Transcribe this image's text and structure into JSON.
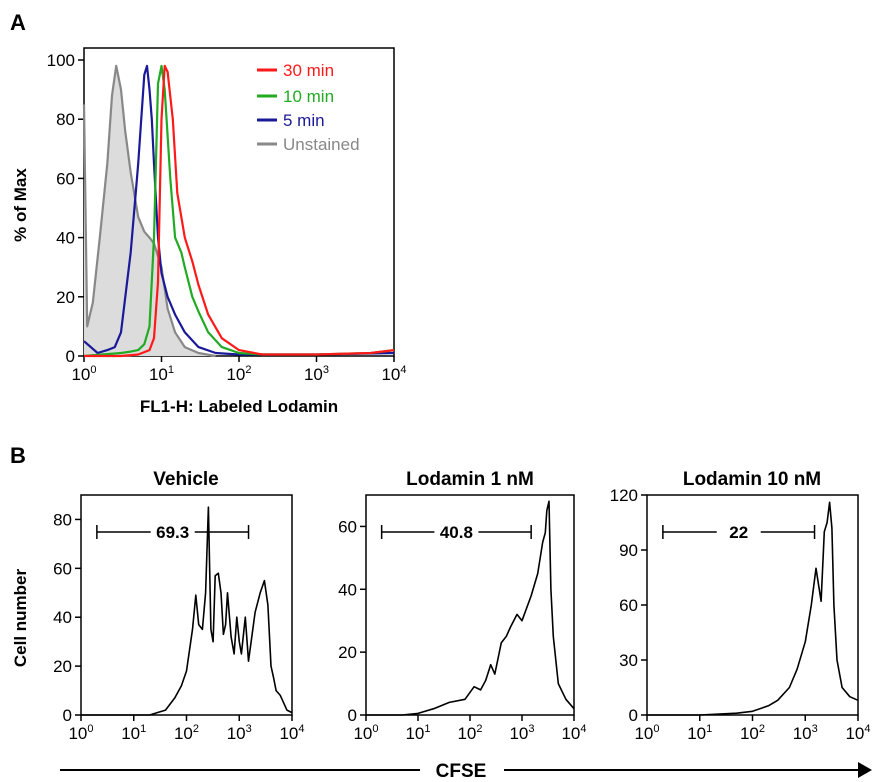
{
  "panel_a": {
    "label": "A",
    "ylabel": "% of Max",
    "xlabel": "FL1-H: Labeled Lodamin",
    "yticks": [
      "0",
      "20",
      "40",
      "60",
      "80",
      "100"
    ],
    "xticks": [
      {
        "base": "10",
        "exp": "0"
      },
      {
        "base": "10",
        "exp": "1"
      },
      {
        "base": "10",
        "exp": "2"
      },
      {
        "base": "10",
        "exp": "3"
      },
      {
        "base": "10",
        "exp": "4"
      }
    ],
    "legend": [
      "30 min",
      "10 min",
      "5 min",
      "Unstained"
    ]
  },
  "panel_b": {
    "label": "B",
    "ylabel": "Cell number",
    "axis_label": "CFSE",
    "xticks": [
      {
        "base": "10",
        "exp": "0"
      },
      {
        "base": "10",
        "exp": "1"
      },
      {
        "base": "10",
        "exp": "2"
      },
      {
        "base": "10",
        "exp": "3"
      },
      {
        "base": "10",
        "exp": "4"
      }
    ],
    "plots": [
      {
        "title": "Vehicle",
        "gate": "69.3",
        "yticks": [
          "0",
          "20",
          "40",
          "60",
          "80"
        ]
      },
      {
        "title": "Lodamin 1 nM",
        "gate": "40.8",
        "yticks": [
          "0",
          "20",
          "40",
          "60"
        ]
      },
      {
        "title": "Lodamin 10 nM",
        "gate": "22",
        "yticks": [
          "0",
          "30",
          "60",
          "90",
          "120"
        ]
      }
    ]
  },
  "colors": {
    "c30": "#ff1a1a",
    "c10": "#22aa22",
    "c5": "#1a1a99",
    "unstained": "#888888",
    "unstained_fill": "#dcdcdc"
  },
  "chart_data": [
    {
      "type": "line",
      "x_scale": "log",
      "xlabel": "FL1-H: Labeled Lodamin",
      "ylabel": "% of Max",
      "xlim": [
        1,
        10000
      ],
      "ylim": [
        0,
        100
      ],
      "legend_position": "top-right",
      "series": [
        {
          "name": "30 min",
          "color": "#ff1a1a",
          "x": [
            1,
            3,
            5,
            7,
            8,
            9,
            10,
            11,
            12,
            14,
            16,
            20,
            25,
            30,
            40,
            60,
            100,
            200,
            1000,
            5000,
            10000
          ],
          "y": [
            0,
            0,
            0.5,
            2,
            6,
            25,
            80,
            98,
            96,
            80,
            55,
            40,
            32,
            24,
            14,
            6,
            2,
            0.5,
            0.5,
            1,
            2
          ]
        },
        {
          "name": "10 min",
          "color": "#22aa22",
          "x": [
            1,
            3,
            4,
            5,
            6,
            7,
            8,
            9,
            10,
            11,
            13,
            15,
            18,
            20,
            25,
            30,
            40,
            60,
            100,
            200,
            1000,
            5000,
            10000
          ],
          "y": [
            0,
            1,
            1.5,
            2,
            4,
            10,
            40,
            92,
            98,
            90,
            60,
            40,
            35,
            30,
            20,
            15,
            8,
            3,
            1,
            0.5,
            0.5,
            1,
            2
          ]
        },
        {
          "name": "5 min",
          "color": "#1a1a99",
          "x": [
            1,
            1.5,
            2,
            2.5,
            3,
            4,
            5,
            6,
            6.5,
            7,
            7.5,
            8,
            9,
            10,
            12,
            15,
            20,
            30,
            50,
            100,
            1000,
            10000
          ],
          "y": [
            5,
            1,
            2,
            3,
            8,
            35,
            65,
            95,
            98,
            90,
            80,
            65,
            40,
            28,
            20,
            14,
            8,
            3,
            1,
            0.5,
            0.5,
            1
          ]
        },
        {
          "name": "Unstained",
          "color": "#888888",
          "x": [
            1,
            1.1,
            1.3,
            1.6,
            2,
            2.3,
            2.6,
            3,
            3.4,
            4,
            5,
            6,
            7,
            8,
            10,
            12,
            15,
            20,
            30,
            50
          ],
          "y": [
            85,
            10,
            18,
            40,
            65,
            88,
            98,
            90,
            76,
            62,
            47,
            42,
            40,
            38,
            30,
            16,
            8,
            3,
            1,
            0
          ]
        }
      ]
    },
    {
      "type": "line",
      "title": "Vehicle",
      "x_scale": "log",
      "xlabel": "CFSE",
      "ylabel": "Cell number",
      "xlim": [
        1,
        10000
      ],
      "ylim": [
        0,
        90
      ],
      "gate": {
        "label": "69.3",
        "x": [
          2,
          1500
        ]
      },
      "series": [
        {
          "x": [
            1,
            20,
            40,
            60,
            80,
            100,
            130,
            150,
            170,
            200,
            230,
            260,
            290,
            320,
            350,
            400,
            450,
            500,
            550,
            600,
            700,
            800,
            900,
            1000,
            1100,
            1300,
            1500,
            2000,
            2500,
            3000,
            3500,
            4000,
            4500,
            5000,
            6000,
            8000,
            10000
          ],
          "y": [
            0,
            0,
            2,
            7,
            12,
            18,
            35,
            49,
            37,
            35,
            50,
            85,
            35,
            30,
            57,
            58,
            50,
            33,
            37,
            50,
            32,
            25,
            40,
            30,
            25,
            40,
            22,
            42,
            50,
            55,
            45,
            20,
            15,
            10,
            8,
            2,
            1
          ]
        }
      ]
    },
    {
      "type": "line",
      "title": "Lodamin 1 nM",
      "x_scale": "log",
      "xlabel": "CFSE",
      "ylabel": "Cell number",
      "xlim": [
        1,
        10000
      ],
      "ylim": [
        0,
        70
      ],
      "gate": {
        "label": "40.8",
        "x": [
          2,
          1500
        ]
      },
      "series": [
        {
          "x": [
            1,
            5,
            10,
            20,
            40,
            80,
            120,
            160,
            200,
            250,
            300,
            400,
            500,
            600,
            800,
            1000,
            1500,
            2000,
            2500,
            2800,
            3000,
            3300,
            3600,
            4000,
            5000,
            7000,
            10000
          ],
          "y": [
            0,
            0,
            0.5,
            2,
            4,
            5,
            9,
            8,
            11,
            16,
            13,
            23,
            25,
            28,
            32,
            30,
            38,
            45,
            55,
            58,
            65,
            68,
            40,
            25,
            10,
            5,
            2
          ]
        }
      ]
    },
    {
      "type": "line",
      "title": "Lodamin 10 nM",
      "x_scale": "log",
      "xlabel": "CFSE",
      "ylabel": "Cell number",
      "xlim": [
        1,
        10000
      ],
      "ylim": [
        0,
        120
      ],
      "gate": {
        "label": "22",
        "x": [
          2,
          1500
        ]
      },
      "series": [
        {
          "x": [
            1,
            10,
            50,
            100,
            200,
            300,
            500,
            700,
            1000,
            1300,
            1600,
            2000,
            2300,
            2600,
            2900,
            3200,
            3500,
            4000,
            5000,
            7000,
            10000
          ],
          "y": [
            0,
            0,
            1,
            2,
            5,
            8,
            15,
            25,
            40,
            60,
            80,
            62,
            100,
            105,
            116,
            102,
            60,
            30,
            15,
            10,
            8
          ]
        }
      ]
    }
  ]
}
